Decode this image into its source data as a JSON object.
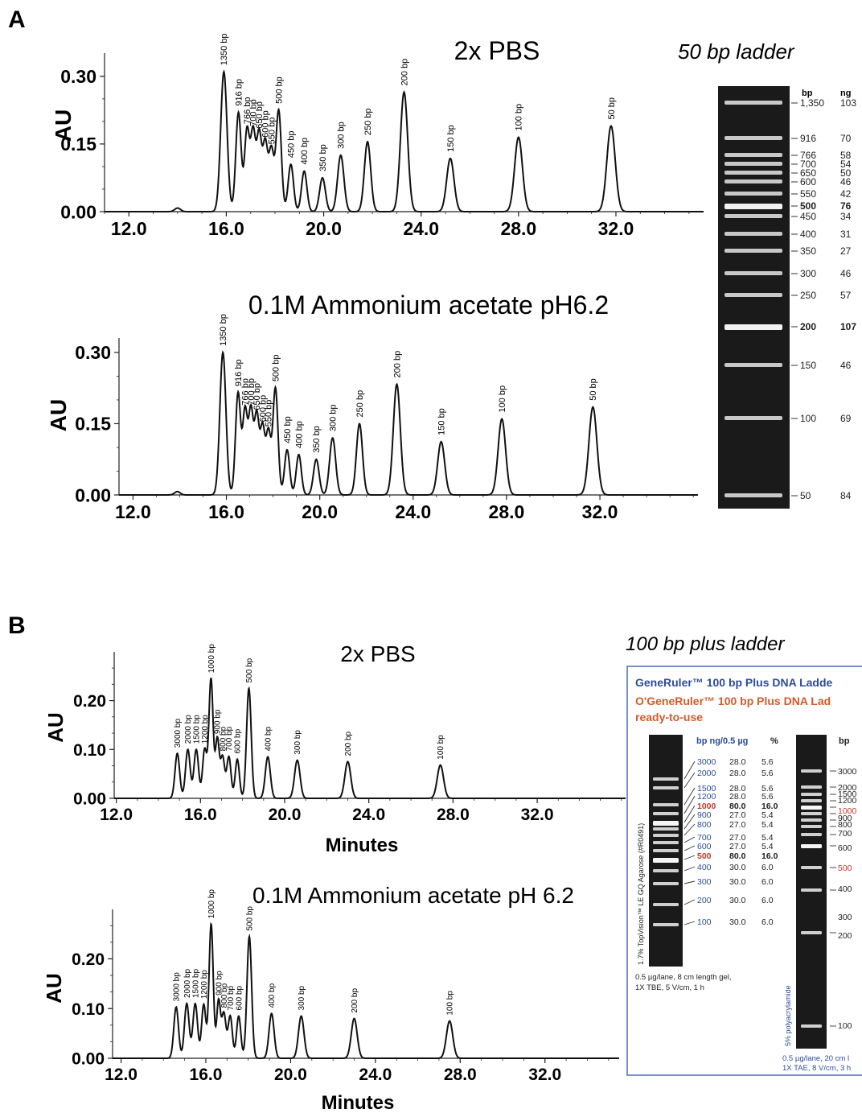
{
  "figure": {
    "panelA": {
      "letter": "A",
      "ladder_title": "50 bp ladder",
      "gel": {
        "header_bp": "bp",
        "header_ng": "ng",
        "rows": [
          {
            "bp": "1,350",
            "ng": "103",
            "bold": false
          },
          {
            "bp": "916",
            "ng": "70",
            "bold": false
          },
          {
            "bp": "766",
            "ng": "58",
            "bold": false
          },
          {
            "bp": "700",
            "ng": "54",
            "bold": false
          },
          {
            "bp": "650",
            "ng": "50",
            "bold": false
          },
          {
            "bp": "600",
            "ng": "46",
            "bold": false
          },
          {
            "bp": "550",
            "ng": "42",
            "bold": false
          },
          {
            "bp": "500",
            "ng": "76",
            "bold": true
          },
          {
            "bp": "450",
            "ng": "34",
            "bold": false
          },
          {
            "bp": "400",
            "ng": "31",
            "bold": false
          },
          {
            "bp": "350",
            "ng": "27",
            "bold": false
          },
          {
            "bp": "300",
            "ng": "46",
            "bold": false
          },
          {
            "bp": "250",
            "ng": "57",
            "bold": false
          },
          {
            "bp": "200",
            "ng": "107",
            "bold": true
          },
          {
            "bp": "150",
            "ng": "46",
            "bold": false
          },
          {
            "bp": "100",
            "ng": "69",
            "bold": false
          },
          {
            "bp": "50",
            "ng": "84",
            "bold": false
          }
        ]
      }
    },
    "panelB": {
      "letter": "B",
      "ladder_title": "100 bp plus ladder",
      "box": {
        "title1": "GeneRuler™ 100 bp Plus DNA Ladde",
        "title2": "O'GeneRuler™ 100 bp Plus DNA Lad",
        "title3": "ready-to-use",
        "col_head": "bp ng/0.5 µg",
        "col_pct": "%",
        "right_head": "bp",
        "rows": [
          {
            "bp": "3000",
            "ng": "28.0",
            "pct": "5.6",
            "color": "#2b4b9a",
            "bold": false
          },
          {
            "bp": "2000",
            "ng": "28.0",
            "pct": "5.6",
            "color": "#2b4b9a",
            "bold": false
          },
          {
            "bp": "1500",
            "ng": "28.0",
            "pct": "5.6",
            "color": "#2b4b9a",
            "bold": false
          },
          {
            "bp": "1200",
            "ng": "28.0",
            "pct": "5.6",
            "color": "#2b4b9a",
            "bold": false
          },
          {
            "bp": "1000",
            "ng": "80.0",
            "pct": "16.0",
            "color": "#c0392b",
            "bold": true
          },
          {
            "bp": "900",
            "ng": "27.0",
            "pct": "5.4",
            "color": "#2b4b9a",
            "bold": false
          },
          {
            "bp": "800",
            "ng": "27.0",
            "pct": "5.4",
            "color": "#2b4b9a",
            "bold": false
          },
          {
            "bp": "700",
            "ng": "27.0",
            "pct": "5.4",
            "color": "#2b4b9a",
            "bold": false
          },
          {
            "bp": "600",
            "ng": "27.0",
            "pct": "5.4",
            "color": "#2b4b9a",
            "bold": false
          },
          {
            "bp": "500",
            "ng": "80.0",
            "pct": "16.0",
            "color": "#c0392b",
            "bold": true
          },
          {
            "bp": "400",
            "ng": "30.0",
            "pct": "6.0",
            "color": "#2b4b9a",
            "bold": false
          },
          {
            "bp": "300",
            "ng": "30.0",
            "pct": "6.0",
            "color": "#2b4b9a",
            "bold": false
          },
          {
            "bp": "200",
            "ng": "30.0",
            "pct": "6.0",
            "color": "#2b4b9a",
            "bold": false
          },
          {
            "bp": "100",
            "ng": "30.0",
            "pct": "6.0",
            "color": "#2b4b9a",
            "bold": false
          }
        ],
        "right_labels": [
          {
            "bp": "3000",
            "color": "#222"
          },
          {
            "bp": "2000",
            "color": "#222"
          },
          {
            "bp": "1500",
            "color": "#222"
          },
          {
            "bp": "1200",
            "color": "#222"
          },
          {
            "bp": "1000",
            "color": "#c0392b"
          },
          {
            "bp": "900",
            "color": "#222"
          },
          {
            "bp": "800",
            "color": "#222"
          },
          {
            "bp": "700",
            "color": "#222"
          },
          {
            "bp": "600",
            "color": "#222"
          },
          {
            "bp": "500",
            "color": "#c0392b"
          },
          {
            "bp": "400",
            "color": "#222"
          },
          {
            "bp": "300",
            "color": "#222"
          },
          {
            "bp": "200",
            "color": "#222"
          },
          {
            "bp": "100",
            "color": "#222"
          }
        ],
        "gel1_side": "1.7% TopVision™ LE GQ Agarose (#R0491)",
        "gel1_note1": "0.5 µg/lane, 8 cm length gel,",
        "gel1_note2": "1X TBE, 5 V/cm, 1 h",
        "gel2_side": "5% polyacrylamide",
        "gel2_note1": "0.5 µg/lane, 20 cm l",
        "gel2_note2": "1X TAE, 8 V/cm, 3 h"
      }
    }
  },
  "chart_data": [
    {
      "type": "line",
      "panel": "A",
      "title": "2x PBS",
      "ylabel": "AU",
      "xlabel": "",
      "xlim": [
        11.0,
        35.6
      ],
      "ylim": [
        0.0,
        0.33
      ],
      "xticks": [
        "12.0",
        "16.0",
        "20.0",
        "24.0",
        "28.0",
        "32.0"
      ],
      "yticks": [
        "0.00",
        "0.15",
        "0.30"
      ],
      "peaks": [
        {
          "x": 14.0,
          "y": 0.008,
          "w": 0.12,
          "label": ""
        },
        {
          "x": 15.9,
          "y": 0.31,
          "w": 0.13,
          "label": "1350 bp"
        },
        {
          "x": 16.5,
          "y": 0.22,
          "w": 0.11,
          "label": "916 bp"
        },
        {
          "x": 16.85,
          "y": 0.18,
          "w": 0.1,
          "label": "766 bp"
        },
        {
          "x": 17.1,
          "y": 0.175,
          "w": 0.1,
          "label": "700 bp"
        },
        {
          "x": 17.35,
          "y": 0.17,
          "w": 0.1,
          "label": "650 bp"
        },
        {
          "x": 17.6,
          "y": 0.15,
          "w": 0.1,
          "label": "600 bp"
        },
        {
          "x": 17.85,
          "y": 0.135,
          "w": 0.1,
          "label": "550 bp"
        },
        {
          "x": 18.15,
          "y": 0.225,
          "w": 0.11,
          "label": "500 bp"
        },
        {
          "x": 18.65,
          "y": 0.105,
          "w": 0.11,
          "label": "450 bp"
        },
        {
          "x": 19.2,
          "y": 0.09,
          "w": 0.11,
          "label": "400 bp"
        },
        {
          "x": 19.95,
          "y": 0.075,
          "w": 0.12,
          "label": "350 bp"
        },
        {
          "x": 20.7,
          "y": 0.125,
          "w": 0.13,
          "label": "300 bp"
        },
        {
          "x": 21.8,
          "y": 0.155,
          "w": 0.13,
          "label": "250 bp"
        },
        {
          "x": 23.3,
          "y": 0.265,
          "w": 0.15,
          "label": "200 bp"
        },
        {
          "x": 25.2,
          "y": 0.118,
          "w": 0.15,
          "label": "150 bp"
        },
        {
          "x": 28.0,
          "y": 0.165,
          "w": 0.16,
          "label": "100 bp"
        },
        {
          "x": 31.8,
          "y": 0.19,
          "w": 0.17,
          "label": "50 bp"
        }
      ]
    },
    {
      "type": "line",
      "panel": "A",
      "title": "0.1M Ammonium acetate pH6.2",
      "ylabel": "AU",
      "xlabel": "",
      "xlim": [
        11.4,
        36.2
      ],
      "ylim": [
        0.0,
        0.31
      ],
      "xticks": [
        "12.0",
        "16.0",
        "20.0",
        "24.0",
        "28.0",
        "32.0"
      ],
      "yticks": [
        "0.00",
        "0.15",
        "0.30"
      ],
      "peaks": [
        {
          "x": 13.9,
          "y": 0.007,
          "w": 0.12,
          "label": ""
        },
        {
          "x": 15.85,
          "y": 0.3,
          "w": 0.13,
          "label": "1350 bp"
        },
        {
          "x": 16.5,
          "y": 0.215,
          "w": 0.11,
          "label": "916 bp"
        },
        {
          "x": 16.8,
          "y": 0.175,
          "w": 0.1,
          "label": "766 bp"
        },
        {
          "x": 17.05,
          "y": 0.175,
          "w": 0.1,
          "label": "700 bp"
        },
        {
          "x": 17.3,
          "y": 0.165,
          "w": 0.1,
          "label": "650 bp"
        },
        {
          "x": 17.55,
          "y": 0.14,
          "w": 0.1,
          "label": "600 bp"
        },
        {
          "x": 17.8,
          "y": 0.13,
          "w": 0.1,
          "label": "550 bp"
        },
        {
          "x": 18.1,
          "y": 0.225,
          "w": 0.11,
          "label": "500 bp"
        },
        {
          "x": 18.6,
          "y": 0.095,
          "w": 0.11,
          "label": "450 bp"
        },
        {
          "x": 19.1,
          "y": 0.085,
          "w": 0.11,
          "label": "400 bp"
        },
        {
          "x": 19.85,
          "y": 0.075,
          "w": 0.12,
          "label": "350 bp"
        },
        {
          "x": 20.55,
          "y": 0.12,
          "w": 0.13,
          "label": "300 bp"
        },
        {
          "x": 21.7,
          "y": 0.15,
          "w": 0.13,
          "label": "250 bp"
        },
        {
          "x": 23.3,
          "y": 0.233,
          "w": 0.15,
          "label": "200 bp"
        },
        {
          "x": 25.2,
          "y": 0.112,
          "w": 0.15,
          "label": "150 bp"
        },
        {
          "x": 27.8,
          "y": 0.16,
          "w": 0.16,
          "label": "100 bp"
        },
        {
          "x": 31.7,
          "y": 0.185,
          "w": 0.17,
          "label": "50 bp"
        }
      ]
    },
    {
      "type": "line",
      "panel": "B",
      "title": "2x PBS",
      "ylabel": "AU",
      "xlabel": "Minutes",
      "xlim": [
        11.9,
        36.2
      ],
      "ylim": [
        0.0,
        0.28
      ],
      "xticks": [
        "12.0",
        "16.0",
        "20.0",
        "24.0",
        "28.0",
        "32.0"
      ],
      "yticks": [
        "0.00",
        "0.10",
        "0.20"
      ],
      "peaks": [
        {
          "x": 14.9,
          "y": 0.092,
          "w": 0.11,
          "label": "3000 bp"
        },
        {
          "x": 15.4,
          "y": 0.1,
          "w": 0.11,
          "label": "2000 bp"
        },
        {
          "x": 15.8,
          "y": 0.1,
          "w": 0.11,
          "label": "1500 bp"
        },
        {
          "x": 16.2,
          "y": 0.1,
          "w": 0.1,
          "label": "1200 bp"
        },
        {
          "x": 16.5,
          "y": 0.245,
          "w": 0.1,
          "label": "1000 bp"
        },
        {
          "x": 16.8,
          "y": 0.12,
          "w": 0.09,
          "label": "900 bp"
        },
        {
          "x": 17.05,
          "y": 0.085,
          "w": 0.1,
          "label": "800 bp"
        },
        {
          "x": 17.35,
          "y": 0.085,
          "w": 0.1,
          "label": "700 bp"
        },
        {
          "x": 17.75,
          "y": 0.08,
          "w": 0.1,
          "label": "600 bp"
        },
        {
          "x": 18.3,
          "y": 0.225,
          "w": 0.11,
          "label": "500 bp"
        },
        {
          "x": 19.2,
          "y": 0.085,
          "w": 0.12,
          "label": "400 bp"
        },
        {
          "x": 20.6,
          "y": 0.078,
          "w": 0.13,
          "label": "300 bp"
        },
        {
          "x": 23.0,
          "y": 0.075,
          "w": 0.14,
          "label": "200 bp"
        },
        {
          "x": 27.4,
          "y": 0.068,
          "w": 0.15,
          "label": "100 bp"
        }
      ]
    },
    {
      "type": "line",
      "panel": "B",
      "title": "0.1M Ammonium acetate pH 6.2",
      "ylabel": "AU",
      "xlabel": "Minutes",
      "xlim": [
        11.6,
        35.5
      ],
      "ylim": [
        0.0,
        0.28
      ],
      "xticks": [
        "12.0",
        "16.0",
        "20.0",
        "24.0",
        "28.0",
        "32.0"
      ],
      "yticks": [
        "0.00",
        "0.10",
        "0.20"
      ],
      "peaks": [
        {
          "x": 14.6,
          "y": 0.103,
          "w": 0.11,
          "label": "3000 bp"
        },
        {
          "x": 15.1,
          "y": 0.11,
          "w": 0.11,
          "label": "2000 bp"
        },
        {
          "x": 15.5,
          "y": 0.11,
          "w": 0.11,
          "label": "1500 bp"
        },
        {
          "x": 15.9,
          "y": 0.108,
          "w": 0.1,
          "label": "1200 bp"
        },
        {
          "x": 16.25,
          "y": 0.27,
          "w": 0.1,
          "label": "1000 bp"
        },
        {
          "x": 16.6,
          "y": 0.115,
          "w": 0.09,
          "label": "900 bp"
        },
        {
          "x": 16.85,
          "y": 0.09,
          "w": 0.1,
          "label": "800 bp"
        },
        {
          "x": 17.15,
          "y": 0.085,
          "w": 0.1,
          "label": "700 bp"
        },
        {
          "x": 17.55,
          "y": 0.085,
          "w": 0.1,
          "label": "600 bp"
        },
        {
          "x": 18.05,
          "y": 0.245,
          "w": 0.11,
          "label": "500 bp"
        },
        {
          "x": 19.1,
          "y": 0.09,
          "w": 0.12,
          "label": "400 bp"
        },
        {
          "x": 20.5,
          "y": 0.085,
          "w": 0.13,
          "label": "300 bp"
        },
        {
          "x": 23.0,
          "y": 0.08,
          "w": 0.14,
          "label": "200 bp"
        },
        {
          "x": 27.5,
          "y": 0.075,
          "w": 0.15,
          "label": "100 bp"
        }
      ]
    }
  ]
}
